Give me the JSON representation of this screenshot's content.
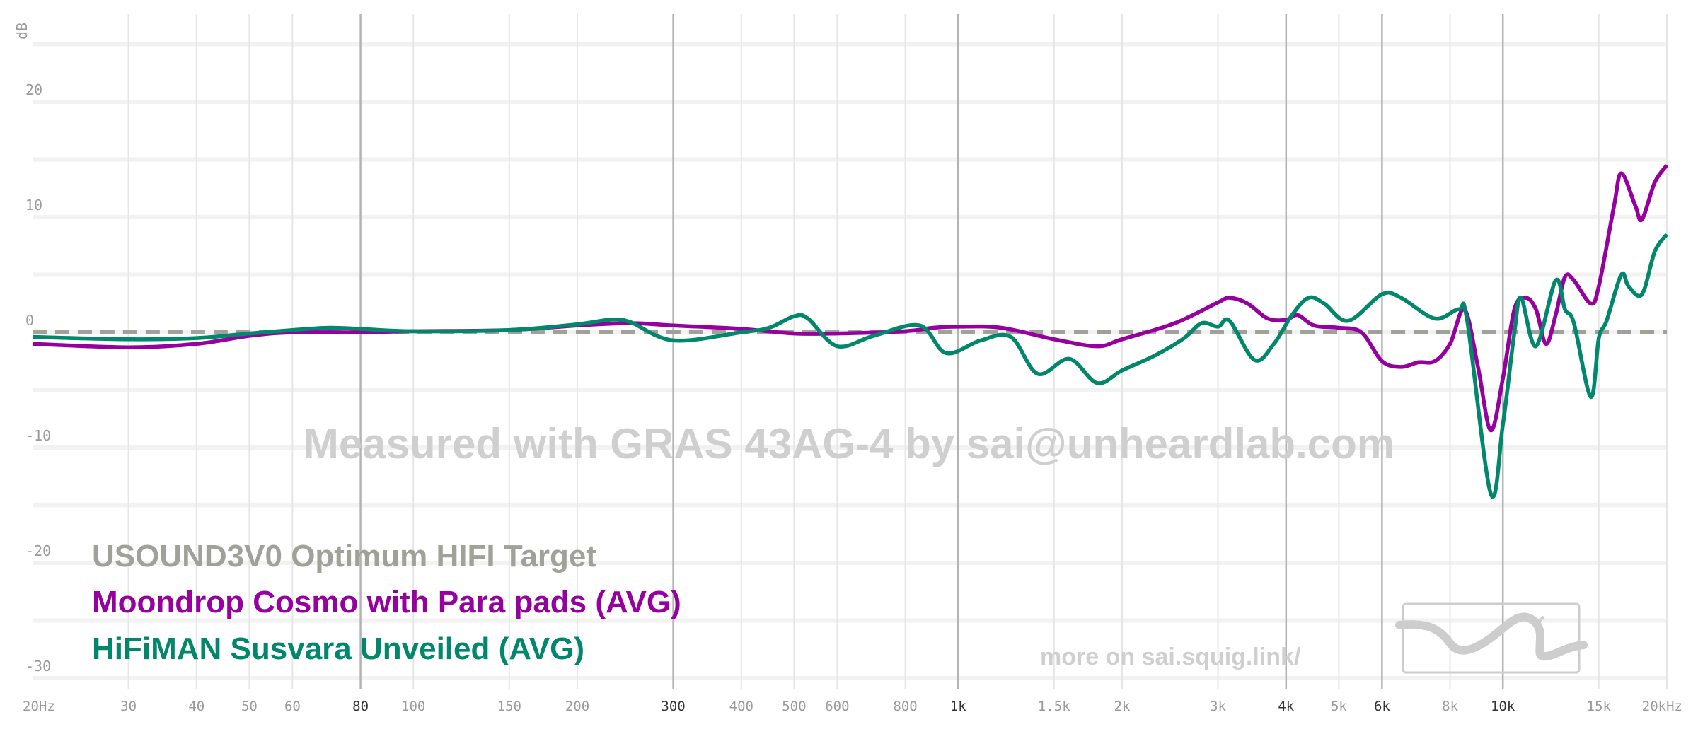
{
  "chart_data": {
    "type": "line",
    "title": "",
    "xlabel": "",
    "ylabel": "dB",
    "xscale": "log",
    "xlim": [
      20,
      20000
    ],
    "ylim": [
      -31,
      26
    ],
    "grid": true,
    "x_ticks": [
      {
        "value": 20,
        "label": "20Hz",
        "major": false
      },
      {
        "value": 30,
        "label": "30",
        "major": false
      },
      {
        "value": 40,
        "label": "40",
        "major": false
      },
      {
        "value": 50,
        "label": "50",
        "major": false
      },
      {
        "value": 60,
        "label": "60",
        "major": false
      },
      {
        "value": 80,
        "label": "80",
        "major": true
      },
      {
        "value": 100,
        "label": "100",
        "major": false
      },
      {
        "value": 150,
        "label": "150",
        "major": false
      },
      {
        "value": 200,
        "label": "200",
        "major": false
      },
      {
        "value": 300,
        "label": "300",
        "major": true
      },
      {
        "value": 400,
        "label": "400",
        "major": false
      },
      {
        "value": 500,
        "label": "500",
        "major": false
      },
      {
        "value": 600,
        "label": "600",
        "major": false
      },
      {
        "value": 800,
        "label": "800",
        "major": false
      },
      {
        "value": 1000,
        "label": "1k",
        "major": true
      },
      {
        "value": 1500,
        "label": "1.5k",
        "major": false
      },
      {
        "value": 2000,
        "label": "2k",
        "major": false
      },
      {
        "value": 3000,
        "label": "3k",
        "major": false
      },
      {
        "value": 4000,
        "label": "4k",
        "major": true
      },
      {
        "value": 5000,
        "label": "5k",
        "major": false
      },
      {
        "value": 6000,
        "label": "6k",
        "major": true
      },
      {
        "value": 8000,
        "label": "8k",
        "major": false
      },
      {
        "value": 10000,
        "label": "10k",
        "major": true
      },
      {
        "value": 15000,
        "label": "15k",
        "major": false
      },
      {
        "value": 20000,
        "label": "20kHz",
        "major": false
      }
    ],
    "y_ticks": [
      {
        "value": 20,
        "label": "20"
      },
      {
        "value": 10,
        "label": "10"
      },
      {
        "value": 0,
        "label": "0"
      },
      {
        "value": -10,
        "label": "-10"
      },
      {
        "value": -20,
        "label": "-20"
      },
      {
        "value": -30,
        "label": "-30"
      }
    ],
    "y_minor_grid": [
      25,
      15,
      5,
      -5,
      -15,
      -25
    ],
    "legend_placement": "bottom-left",
    "series": [
      {
        "name": "USOUND3V0 Optimum HIFI Target",
        "color": "#a0a29a",
        "dashed": true,
        "x": [
          20,
          20000
        ],
        "y": [
          0,
          0
        ]
      },
      {
        "name": "Moondrop Cosmo with Para pads (AVG)",
        "color": "#95009e",
        "dashed": false,
        "x": [
          20,
          30,
          40,
          50,
          60,
          80,
          100,
          150,
          200,
          250,
          300,
          400,
          500,
          600,
          800,
          900,
          1000,
          1200,
          1500,
          1800,
          2000,
          2500,
          3000,
          3150,
          3400,
          3700,
          4000,
          4200,
          4500,
          5000,
          5500,
          6000,
          6500,
          7000,
          7500,
          8000,
          8500,
          9000,
          9500,
          10000,
          10500,
          11000,
          11500,
          12000,
          12500,
          13000,
          13500,
          14500,
          15000,
          16000,
          16500,
          17500,
          18000,
          19000,
          20000
        ],
        "y": [
          -1.0,
          -1.3,
          -1.0,
          -0.3,
          0,
          0,
          0.1,
          0.2,
          0.6,
          0.8,
          0.6,
          0.3,
          -0.1,
          -0.1,
          0.1,
          0.4,
          0.5,
          0.4,
          -0.6,
          -1.2,
          -0.6,
          0.8,
          2.6,
          3.0,
          2.5,
          1.2,
          1.1,
          1.5,
          0.6,
          0.4,
          0.0,
          -2.5,
          -3.0,
          -2.6,
          -2.5,
          -1.0,
          2.0,
          -3.0,
          -8.5,
          -4.0,
          2.0,
          3.0,
          2.0,
          -1.0,
          1.5,
          4.8,
          4.5,
          2.5,
          4.0,
          11.0,
          13.8,
          11.0,
          9.8,
          13.0,
          14.5
        ]
      },
      {
        "name": "HiFiMAN Susvara Unveiled (AVG)",
        "color": "#00876c",
        "dashed": false,
        "x": [
          20,
          30,
          40,
          50,
          60,
          70,
          80,
          100,
          150,
          200,
          230,
          250,
          300,
          400,
          450,
          500,
          530,
          600,
          700,
          850,
          950,
          1100,
          1250,
          1400,
          1600,
          1800,
          2000,
          2300,
          2600,
          2800,
          3000,
          3150,
          3500,
          3800,
          4100,
          4400,
          4700,
          5200,
          6000,
          6500,
          7500,
          8300,
          8600,
          9500,
          10000,
          10500,
          10800,
          11500,
          12500,
          13000,
          13500,
          14500,
          15000,
          15500,
          16500,
          17000,
          18000,
          19000,
          20000
        ],
        "y": [
          -0.4,
          -0.6,
          -0.5,
          -0.1,
          0.2,
          0.4,
          0.3,
          0.1,
          0.2,
          0.7,
          1.1,
          0.9,
          -0.7,
          0.0,
          0.4,
          1.4,
          1.2,
          -1.2,
          -0.3,
          0.6,
          -1.8,
          -0.7,
          -0.4,
          -3.6,
          -2.3,
          -4.4,
          -3.3,
          -2.0,
          -0.5,
          0.8,
          0.5,
          1.0,
          -2.4,
          -1.0,
          1.5,
          3.0,
          2.5,
          1.0,
          3.3,
          3.0,
          1.2,
          2.0,
          1.0,
          -14.0,
          -8.0,
          0.0,
          3.0,
          -1.2,
          4.5,
          2.0,
          0.8,
          -5.6,
          -0.5,
          1.0,
          5.0,
          4.0,
          3.3,
          7.0,
          8.5
        ]
      }
    ],
    "annotations": {
      "watermark": "Measured with GRAS 43AG-4 by sai@unheardlab.com",
      "more_link": "more on sai.squig.link/"
    }
  }
}
